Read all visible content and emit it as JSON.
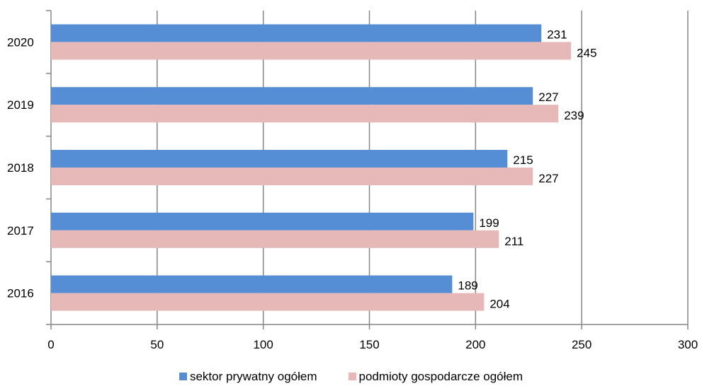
{
  "chart_data": {
    "type": "bar",
    "orientation": "horizontal",
    "categories": [
      "2016",
      "2017",
      "2018",
      "2019",
      "2020"
    ],
    "series": [
      {
        "name": "sektor prywatny ogółem",
        "values": [
          189,
          199,
          215,
          227,
          231
        ],
        "color": "#558ed5"
      },
      {
        "name": "podmioty gospodarcze ogółem",
        "values": [
          204,
          211,
          227,
          239,
          245
        ],
        "color": "#e6b9b8"
      }
    ],
    "x_ticks": [
      "0",
      "50",
      "100",
      "150",
      "200",
      "250",
      "300"
    ],
    "xlim": [
      0,
      300
    ],
    "grid": "vertical",
    "legend": "bottom",
    "title": "",
    "xlabel": "",
    "ylabel": ""
  }
}
